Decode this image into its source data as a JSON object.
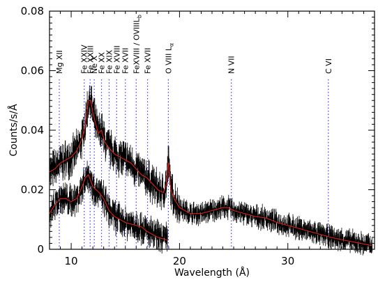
{
  "chart_data": {
    "type": "line",
    "title": "",
    "xlabel": "Wavelength (Å)",
    "ylabel": "Counts/s/Å",
    "xlim": [
      8,
      38
    ],
    "ylim": [
      0,
      0.08
    ],
    "x_ticks": [
      10,
      20,
      30
    ],
    "y_ticks": [
      0,
      0.02,
      0.04,
      0.06,
      0.08
    ],
    "x_tick_labels": [
      "10",
      "20",
      "30"
    ],
    "y_tick_labels": [
      "0",
      "0.02",
      "0.04",
      "0.06",
      "0.08"
    ],
    "grid": false,
    "legend": "none",
    "colors": {
      "data": "#000000",
      "model": "#e0201a",
      "line_markers": "#3a3aff"
    },
    "line_identifications": [
      {
        "label": "Mg XII",
        "x": 8.9,
        "sub": ""
      },
      {
        "label": "Fe XXIV",
        "x": 11.2,
        "sub": ""
      },
      {
        "label": "Fe XXIII",
        "x": 11.75,
        "sub": ""
      },
      {
        "label": "Ne X",
        "x": 12.13,
        "sub": ""
      },
      {
        "label": "Fe XX",
        "x": 12.8,
        "sub": ""
      },
      {
        "label": "Fe XIX",
        "x": 13.5,
        "sub": ""
      },
      {
        "label": "Fe XVIII",
        "x": 14.2,
        "sub": ""
      },
      {
        "label": "Fe XVII",
        "x": 15.0,
        "sub": ""
      },
      {
        "label": "FeXVIII / OVIIIL",
        "x": 16.0,
        "sub": "b"
      },
      {
        "label": "Fe XVII",
        "x": 17.05,
        "sub": ""
      },
      {
        "label": "O VIII L",
        "x": 18.97,
        "sub": "α"
      },
      {
        "label": "N VII",
        "x": 24.78,
        "sub": ""
      },
      {
        "label": "C VI",
        "x": 33.74,
        "sub": ""
      }
    ],
    "series": [
      {
        "x": [
          8.0,
          8.5,
          9.0,
          9.5,
          10.0,
          10.5,
          11.0,
          11.3,
          11.6,
          11.8,
          12.0,
          12.2,
          12.5,
          12.8,
          13.1,
          13.5,
          14.0,
          14.5,
          15.0,
          15.5,
          16.0,
          16.5,
          17.0,
          17.5,
          18.0,
          18.5,
          18.8,
          18.97,
          19.2,
          19.5,
          20.0,
          21.0,
          22.0,
          23.0,
          24.0,
          24.5,
          25.0,
          26.0,
          27.0,
          28.0,
          29.0,
          30.0,
          31.0,
          32.0,
          33.0,
          34.0,
          35.0,
          36.0,
          37.0,
          37.8
        ],
        "model": [
          0.026,
          0.027,
          0.029,
          0.03,
          0.031,
          0.033,
          0.037,
          0.042,
          0.05,
          0.05,
          0.046,
          0.043,
          0.039,
          0.04,
          0.036,
          0.034,
          0.032,
          0.031,
          0.03,
          0.029,
          0.027,
          0.025,
          0.024,
          0.022,
          0.02,
          0.019,
          0.022,
          0.03,
          0.02,
          0.017,
          0.014,
          0.012,
          0.012,
          0.013,
          0.014,
          0.014,
          0.013,
          0.012,
          0.011,
          0.0105,
          0.009,
          0.008,
          0.007,
          0.006,
          0.005,
          0.004,
          0.0032,
          0.0025,
          0.0018,
          0.0012
        ]
      },
      {
        "x": [
          8.0,
          8.5,
          9.0,
          9.5,
          10.0,
          10.5,
          11.0,
          11.3,
          11.6,
          11.8,
          12.0,
          12.3,
          12.6,
          13.0,
          13.5,
          14.0,
          14.5,
          15.0,
          15.5,
          16.0,
          16.5,
          17.0,
          17.5,
          18.0,
          18.5,
          18.9
        ],
        "model": [
          0.012,
          0.015,
          0.017,
          0.017,
          0.016,
          0.017,
          0.021,
          0.024,
          0.025,
          0.023,
          0.021,
          0.02,
          0.019,
          0.017,
          0.013,
          0.011,
          0.01,
          0.009,
          0.0085,
          0.008,
          0.0075,
          0.006,
          0.005,
          0.004,
          0.0035,
          0.003
        ]
      }
    ]
  }
}
